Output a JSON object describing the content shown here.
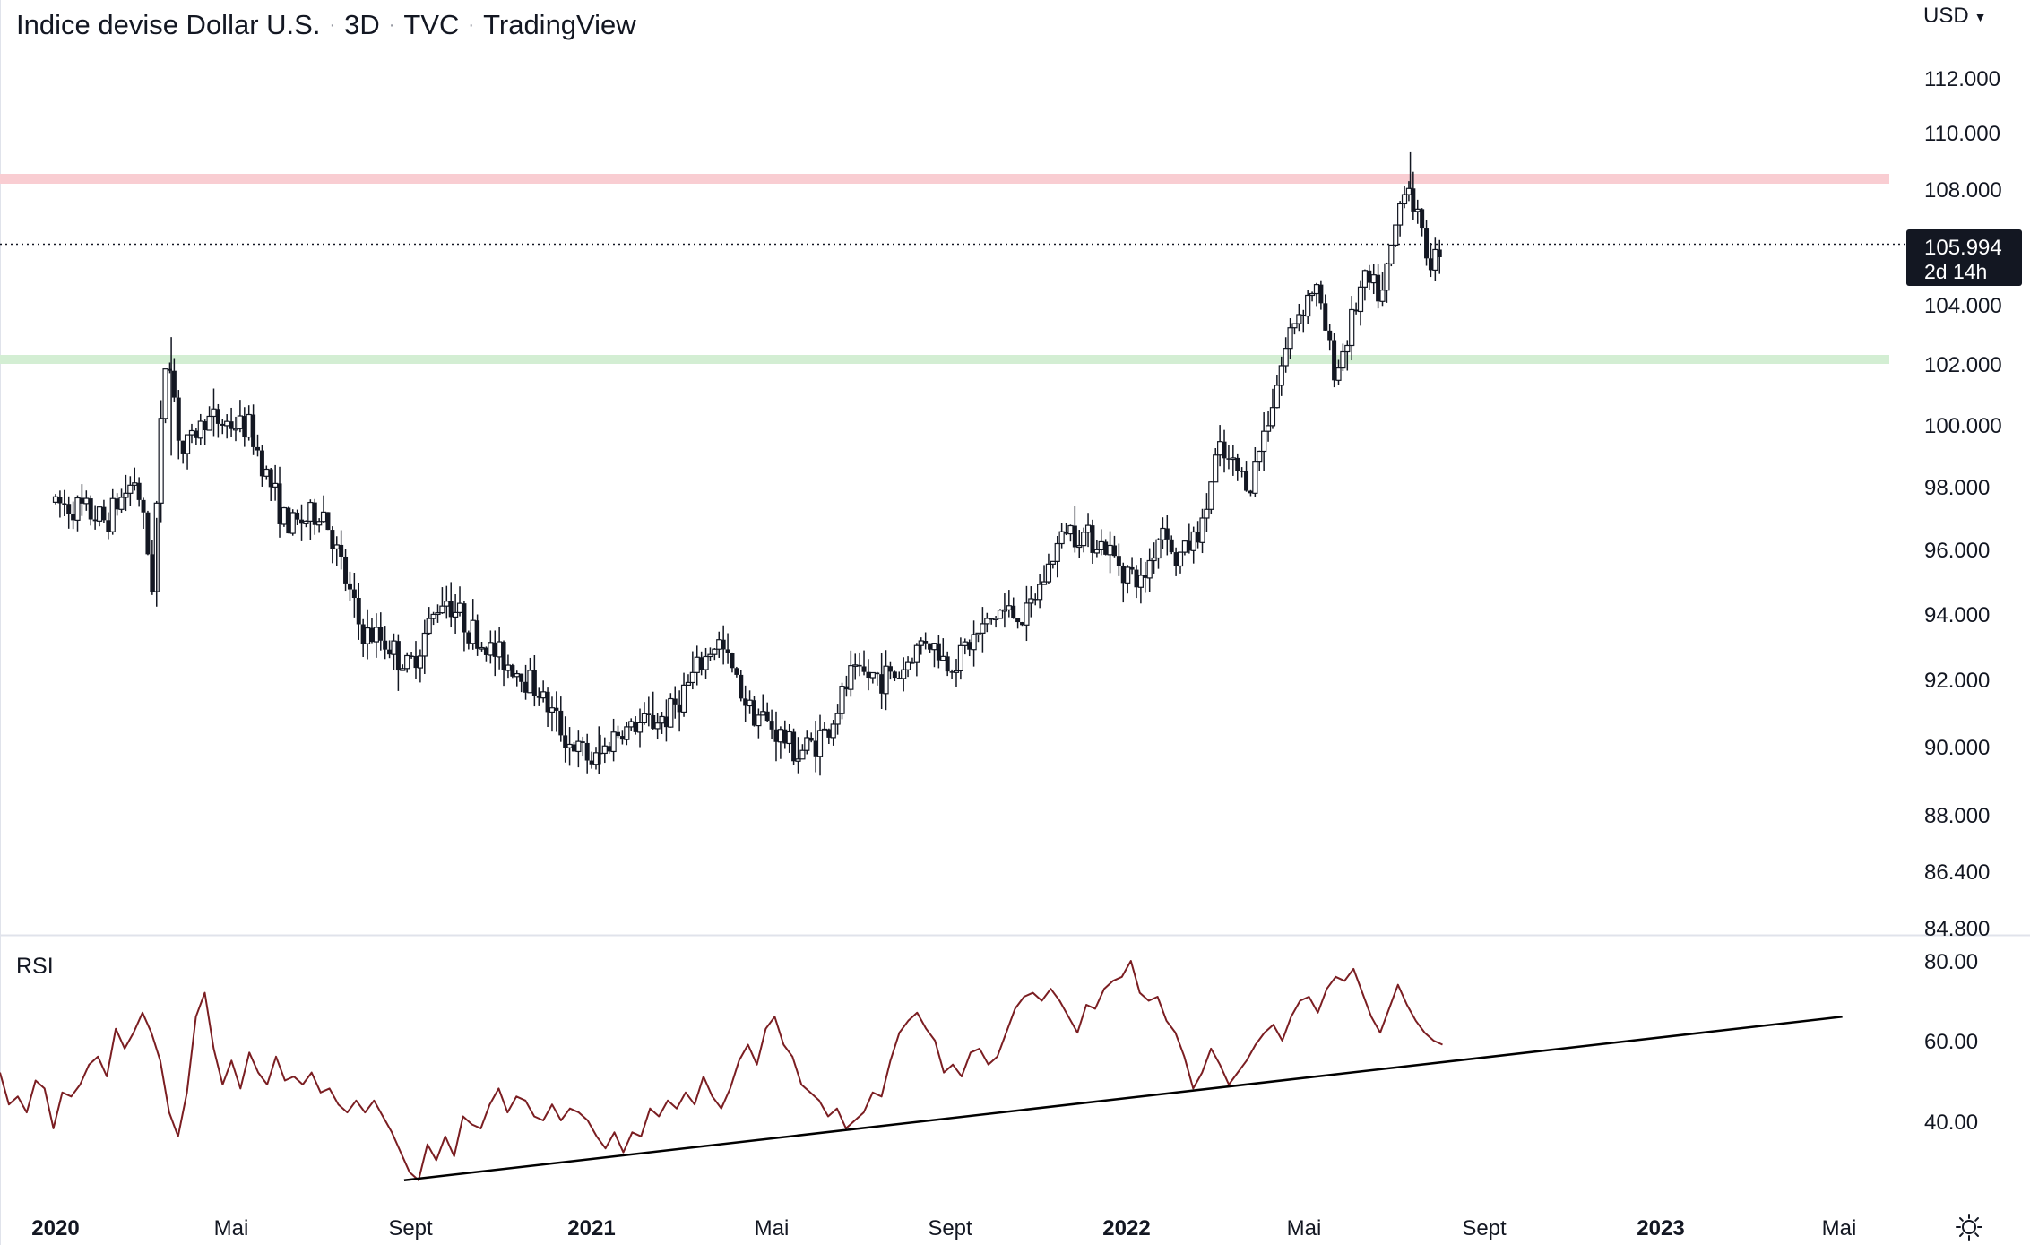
{
  "header": {
    "symbol": "Indice devise Dollar U.S.",
    "interval": "3D",
    "exchange": "TVC",
    "source": "TradingView",
    "currency": "USD"
  },
  "price_badge": {
    "price": "105.994",
    "countdown": "2d 14h"
  },
  "rsi_pane": {
    "label": "RSI"
  },
  "icons": {
    "currency_menu": "chevron-down-icon",
    "settings": "sun-gear-icon"
  },
  "colors": {
    "candle": "#131722",
    "resistance_zone": "#f9cdd2",
    "support_zone": "#d3eed3",
    "rsi_line": "#7b1e22",
    "trendline": "#000000",
    "price_badge_bg": "#131722",
    "grid_divider": "#e0e3eb"
  },
  "chart_data": [
    {
      "type": "candlestick",
      "title": "Indice devise Dollar U.S. · 3D · TVC",
      "x_ticks": [
        "2020",
        "Mai",
        "Sept",
        "2021",
        "Mai",
        "Sept",
        "2022",
        "Mai",
        "Sept",
        "2023",
        "Mai"
      ],
      "x_ticks_bold": [
        "2020",
        "2021",
        "2022",
        "2023"
      ],
      "y_ticks": [
        "112.000",
        "110.000",
        "108.000",
        "104.000",
        "102.000",
        "100.000",
        "98.000",
        "96.000",
        "94.000",
        "92.000",
        "90.000",
        "88.000",
        "86.400",
        "84.800"
      ],
      "y_scale": "log",
      "ylim": [
        84.5,
        113
      ],
      "x_range": [
        "2020-01",
        "2023-07"
      ],
      "last_price": 105.994,
      "horizontal_zones": [
        {
          "name": "resistance",
          "value": 108.2,
          "color": "#f9cdd2"
        },
        {
          "name": "support",
          "value": 102.2,
          "color": "#d3eed3"
        }
      ],
      "anchors": [
        {
          "x": "2020-01-01",
          "y": 97.5
        },
        {
          "x": "2020-01-20",
          "y": 97.3
        },
        {
          "x": "2020-02-07",
          "y": 96.9
        },
        {
          "x": "2020-02-28",
          "y": 98.3
        },
        {
          "x": "2020-03-10",
          "y": 95.0
        },
        {
          "x": "2020-03-16",
          "y": 99.8
        },
        {
          "x": "2020-03-20",
          "y": 102.8
        },
        {
          "x": "2020-03-30",
          "y": 99.0
        },
        {
          "x": "2020-04-15",
          "y": 100.2
        },
        {
          "x": "2020-05-15",
          "y": 99.9
        },
        {
          "x": "2020-06-10",
          "y": 96.7
        },
        {
          "x": "2020-07-05",
          "y": 97.2
        },
        {
          "x": "2020-07-31",
          "y": 93.4
        },
        {
          "x": "2020-08-15",
          "y": 93.2
        },
        {
          "x": "2020-09-01",
          "y": 92.3
        },
        {
          "x": "2020-09-25",
          "y": 94.6
        },
        {
          "x": "2020-10-20",
          "y": 93.1
        },
        {
          "x": "2020-11-05",
          "y": 92.6
        },
        {
          "x": "2020-11-25",
          "y": 91.9
        },
        {
          "x": "2020-12-20",
          "y": 90.1
        },
        {
          "x": "2021-01-06",
          "y": 89.5
        },
        {
          "x": "2021-01-20",
          "y": 90.4
        },
        {
          "x": "2021-02-25",
          "y": 90.9
        },
        {
          "x": "2021-03-31",
          "y": 93.2
        },
        {
          "x": "2021-04-20",
          "y": 91.3
        },
        {
          "x": "2021-05-25",
          "y": 89.8
        },
        {
          "x": "2021-06-15",
          "y": 90.5
        },
        {
          "x": "2021-06-30",
          "y": 92.1
        },
        {
          "x": "2021-08-01",
          "y": 92.1
        },
        {
          "x": "2021-08-20",
          "y": 93.3
        },
        {
          "x": "2021-09-05",
          "y": 92.4
        },
        {
          "x": "2021-10-10",
          "y": 94.1
        },
        {
          "x": "2021-10-28",
          "y": 93.9
        },
        {
          "x": "2021-11-24",
          "y": 96.7
        },
        {
          "x": "2021-12-15",
          "y": 96.3
        },
        {
          "x": "2022-01-14",
          "y": 94.9
        },
        {
          "x": "2022-01-31",
          "y": 97.0
        },
        {
          "x": "2022-02-05",
          "y": 95.5
        },
        {
          "x": "2022-02-25",
          "y": 96.7
        },
        {
          "x": "2022-03-07",
          "y": 99.1
        },
        {
          "x": "2022-03-30",
          "y": 98.1
        },
        {
          "x": "2022-04-28",
          "y": 103.4
        },
        {
          "x": "2022-05-13",
          "y": 104.7
        },
        {
          "x": "2022-05-27",
          "y": 101.6
        },
        {
          "x": "2022-06-15",
          "y": 104.8
        },
        {
          "x": "2022-06-28",
          "y": 104.3
        },
        {
          "x": "2022-07-14",
          "y": 108.5
        },
        {
          "x": "2022-07-28",
          "y": 105.8
        },
        {
          "x": "2022-08-02",
          "y": 105.4
        },
        {
          "x": "2022-08-05",
          "y": 106.0
        }
      ],
      "extremes": {
        "high": 109.3,
        "low": 89.2
      }
    },
    {
      "type": "line",
      "title": "RSI",
      "y_ticks": [
        "80.00",
        "60.00",
        "40.00"
      ],
      "ylim": [
        19,
        81
      ],
      "series": [
        {
          "values": [
            52,
            44,
            46,
            42,
            50,
            48,
            38,
            47,
            46,
            49,
            54,
            56,
            51,
            63,
            58,
            62,
            67,
            62,
            55,
            42,
            36,
            47,
            66,
            72,
            58,
            49,
            55,
            48,
            57,
            52,
            49,
            56,
            50,
            51,
            49,
            52,
            47,
            48,
            44,
            42,
            45,
            42,
            45,
            41,
            37,
            32,
            27,
            25,
            34,
            30,
            36,
            31,
            41,
            39,
            38,
            44,
            48,
            42,
            46,
            45,
            41,
            40,
            44,
            40,
            43,
            42,
            40,
            36,
            33,
            37,
            32,
            37,
            36,
            43,
            41,
            45,
            43,
            47,
            44,
            51,
            46,
            43,
            48,
            55,
            59,
            54,
            63,
            66,
            59,
            56,
            49,
            47,
            45,
            41,
            43,
            38,
            40,
            42,
            47,
            46,
            55,
            62,
            65,
            67,
            63,
            60,
            52,
            54,
            51,
            57,
            58,
            54,
            56,
            62,
            68,
            71,
            72,
            70,
            73,
            70,
            66,
            62,
            69,
            68,
            73,
            75,
            76,
            80,
            72,
            70,
            71,
            65,
            62,
            56,
            48,
            52,
            58,
            54,
            49,
            52,
            55,
            59,
            62,
            64,
            60,
            66,
            70,
            71,
            67,
            73,
            76,
            75,
            78,
            72,
            66,
            62,
            68,
            74,
            69,
            65,
            62,
            60,
            59
          ]
        }
      ],
      "trendline": {
        "from": {
          "x": "2020-08-26",
          "y": 25
        },
        "to": {
          "x": "2023-05-05",
          "y": 66
        }
      }
    }
  ]
}
